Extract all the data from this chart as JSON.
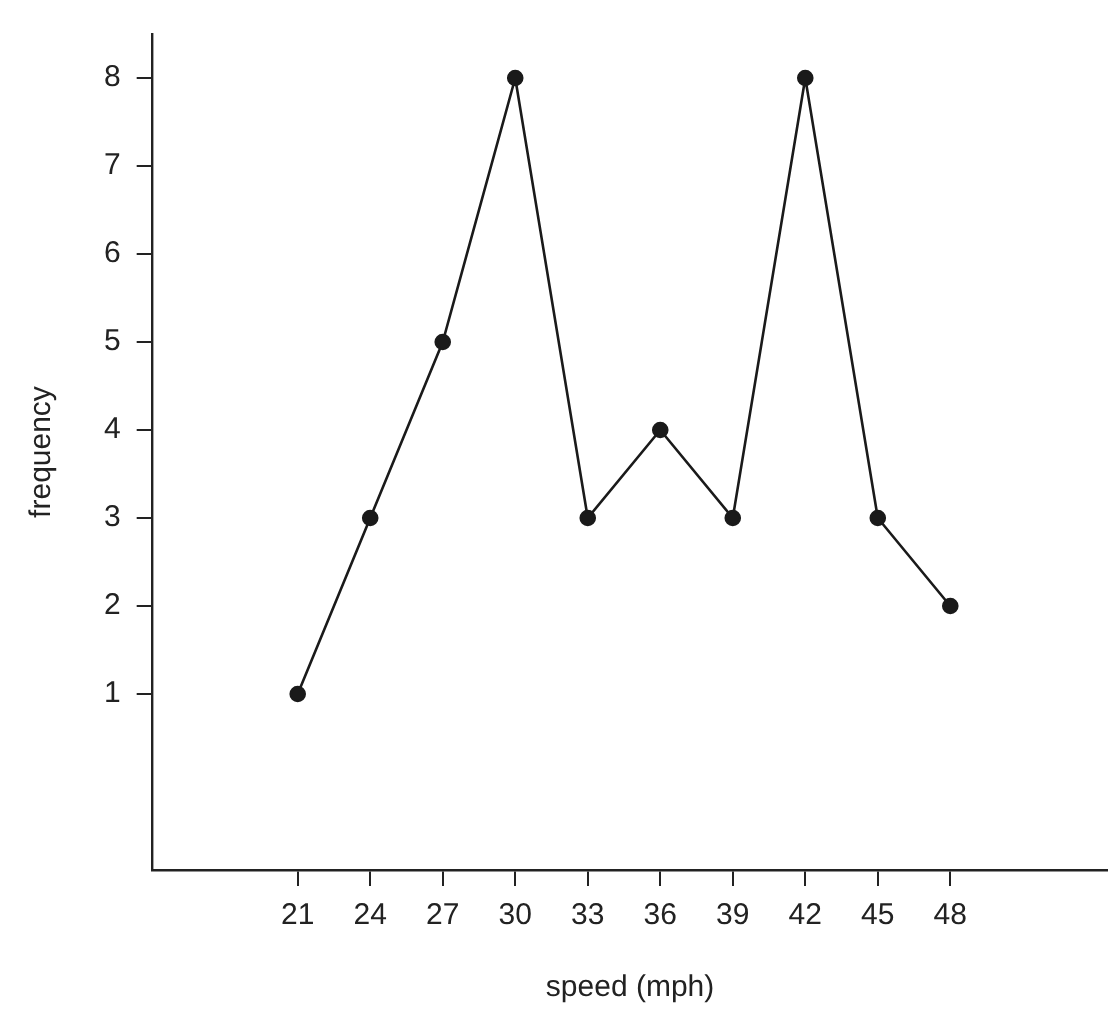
{
  "chart_data": {
    "type": "line",
    "xlabel": "speed (mph)",
    "ylabel": "frequency",
    "x": [
      21,
      24,
      27,
      30,
      33,
      36,
      39,
      42,
      45,
      48
    ],
    "series": [
      {
        "color": "#1a1a1a",
        "values": [
          1,
          3,
          5,
          8,
          3,
          4,
          3,
          8,
          3,
          2
        ]
      }
    ],
    "xlim": [
      15,
      54.5
    ],
    "xticks": [
      21,
      24,
      27,
      30,
      33,
      36,
      39,
      42,
      45,
      48
    ],
    "ylim": [
      -1,
      8.5
    ],
    "yticks": [
      1,
      2,
      3,
      4,
      5,
      6,
      7,
      8
    ],
    "grid": false,
    "legend": false,
    "marker": "circle",
    "line_style": "solid"
  }
}
